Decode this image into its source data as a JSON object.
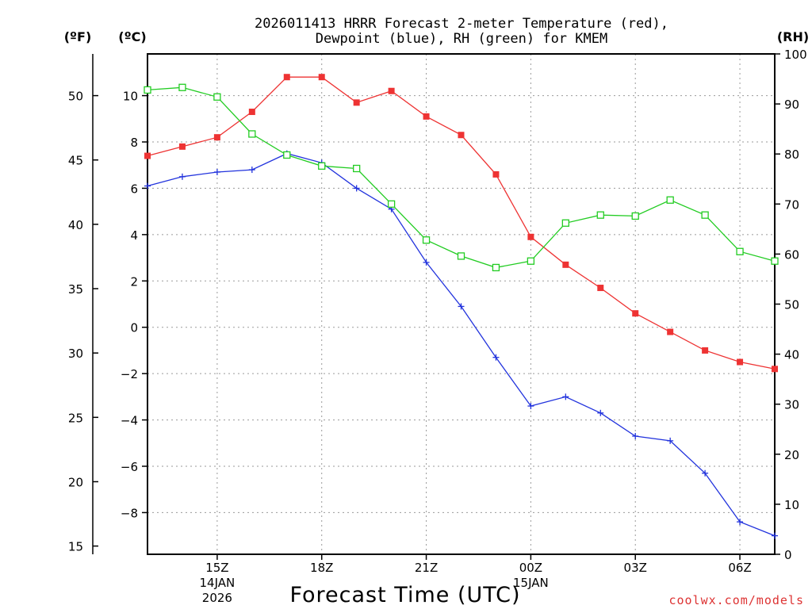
{
  "chart_data": {
    "type": "line",
    "title_line1": "2026011413 HRRR Forecast 2-meter Temperature (red),",
    "title_line2": "Dewpoint (blue), RH (green) for KMEM",
    "xlabel": "Forecast Time (UTC)",
    "credit": "coolwx.com/models",
    "units": {
      "fahrenheit": "(ºF)",
      "celsius": "(ºC)",
      "rh": "(RH)"
    },
    "x_hours": [
      13,
      14,
      15,
      16,
      17,
      18,
      19,
      20,
      21,
      22,
      23,
      24,
      25,
      26,
      27,
      28,
      29,
      30,
      31
    ],
    "x_range": [
      13,
      31
    ],
    "x_ticks": [
      {
        "hour": 15,
        "label": "15Z",
        "sub1": "14JAN",
        "sub2": "2026"
      },
      {
        "hour": 18,
        "label": "18Z",
        "sub1": "",
        "sub2": ""
      },
      {
        "hour": 21,
        "label": "21Z",
        "sub1": "",
        "sub2": ""
      },
      {
        "hour": 24,
        "label": "00Z",
        "sub1": "15JAN",
        "sub2": ""
      },
      {
        "hour": 27,
        "label": "03Z",
        "sub1": "",
        "sub2": ""
      },
      {
        "hour": 30,
        "label": "06Z",
        "sub1": "",
        "sub2": ""
      }
    ],
    "celsius_range": [
      -9.8,
      11.8
    ],
    "celsius_ticks": [
      10,
      8,
      6,
      4,
      2,
      0,
      -2,
      -4,
      -6,
      -8
    ],
    "celsius_tick_labels": [
      "10",
      "8",
      "6",
      "4",
      "2",
      "0",
      "−2",
      "−4",
      "−6",
      "−8"
    ],
    "fahrenheit_ticks": [
      50,
      45,
      40,
      35,
      30,
      25,
      20,
      15
    ],
    "fahrenheit_tick_labels": [
      "50",
      "45",
      "40",
      "35",
      "30",
      "25",
      "20",
      "15"
    ],
    "rh_range": [
      0,
      100
    ],
    "rh_ticks": [
      100,
      90,
      80,
      70,
      60,
      50,
      40,
      30,
      20,
      10,
      0
    ],
    "rh_tick_labels": [
      "100",
      "90",
      "80",
      "70",
      "60",
      "50",
      "40",
      "30",
      "20",
      "10",
      "0"
    ],
    "series": [
      {
        "name": "Temperature",
        "axis": "celsius",
        "color": "#ee3333",
        "marker": "filled-square",
        "values": [
          7.4,
          7.8,
          8.2,
          9.3,
          10.8,
          10.8,
          9.7,
          10.2,
          9.1,
          8.3,
          6.6,
          3.9,
          2.7,
          1.7,
          0.6,
          -0.2,
          -1.0,
          -1.5,
          -1.8
        ]
      },
      {
        "name": "Dewpoint",
        "axis": "celsius",
        "color": "#2233dd",
        "marker": "plus",
        "values": [
          6.1,
          6.5,
          6.7,
          6.8,
          7.5,
          7.1,
          6.0,
          5.1,
          2.8,
          0.9,
          -1.3,
          -3.4,
          -3.0,
          -3.7,
          -4.7,
          -4.9,
          -6.3,
          -8.4,
          -9.0
        ]
      },
      {
        "name": "RH",
        "axis": "rh",
        "color": "#22cc22",
        "marker": "open-square",
        "values": [
          92.8,
          93.3,
          91.4,
          84.0,
          79.8,
          77.6,
          77.1,
          70.0,
          62.8,
          59.6,
          57.3,
          58.6,
          66.2,
          67.8,
          67.6,
          70.8,
          67.8,
          60.5,
          58.6
        ]
      }
    ]
  }
}
